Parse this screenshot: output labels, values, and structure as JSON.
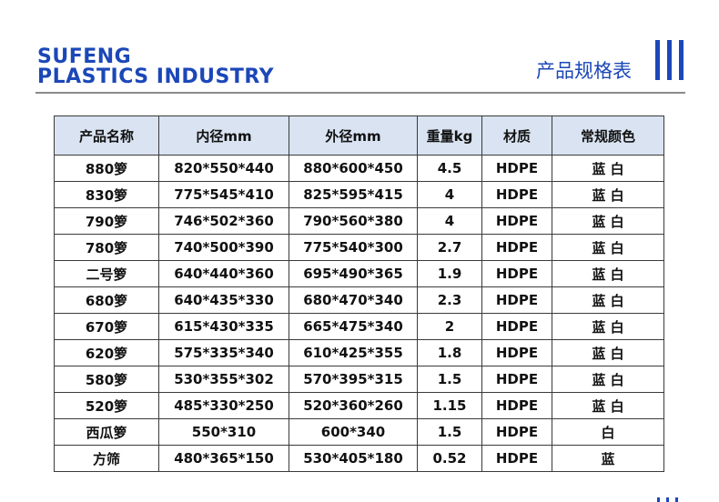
{
  "brand": {
    "line1": "SUFENG",
    "line2": "PLASTICS INDUSTRY"
  },
  "title": "产品规格表",
  "colors": {
    "accent": "#1b47b8",
    "header_bg": "#d9e3f1"
  },
  "table": {
    "headers": [
      "产品名称",
      "内径mm",
      "外径mm",
      "重量kg",
      "材质",
      "常规颜色"
    ],
    "rows": [
      [
        "880箩",
        "820*550*440",
        "880*600*450",
        "4.5",
        "HDPE",
        "蓝 白"
      ],
      [
        "830箩",
        "775*545*410",
        "825*595*415",
        "4",
        "HDPE",
        "蓝 白"
      ],
      [
        "790箩",
        "746*502*360",
        "790*560*380",
        "4",
        "HDPE",
        "蓝 白"
      ],
      [
        "780箩",
        "740*500*390",
        "775*540*300",
        "2.7",
        "HDPE",
        "蓝 白"
      ],
      [
        "二号箩",
        "640*440*360",
        "695*490*365",
        "1.9",
        "HDPE",
        "蓝 白"
      ],
      [
        "680箩",
        "640*435*330",
        "680*470*340",
        "2.3",
        "HDPE",
        "蓝 白"
      ],
      [
        "670箩",
        "615*430*335",
        "665*475*340",
        "2",
        "HDPE",
        "蓝 白"
      ],
      [
        "620箩",
        "575*335*340",
        "610*425*355",
        "1.8",
        "HDPE",
        "蓝 白"
      ],
      [
        "580箩",
        "530*355*302",
        "570*395*315",
        "1.5",
        "HDPE",
        "蓝 白"
      ],
      [
        "520箩",
        "485*330*250",
        "520*360*260",
        "1.15",
        "HDPE",
        "蓝 白"
      ],
      [
        "西瓜箩",
        "550*310",
        "600*340",
        "1.5",
        "HDPE",
        "白"
      ],
      [
        "方筛",
        "480*365*150",
        "530*405*180",
        "0.52",
        "HDPE",
        "蓝"
      ]
    ]
  }
}
